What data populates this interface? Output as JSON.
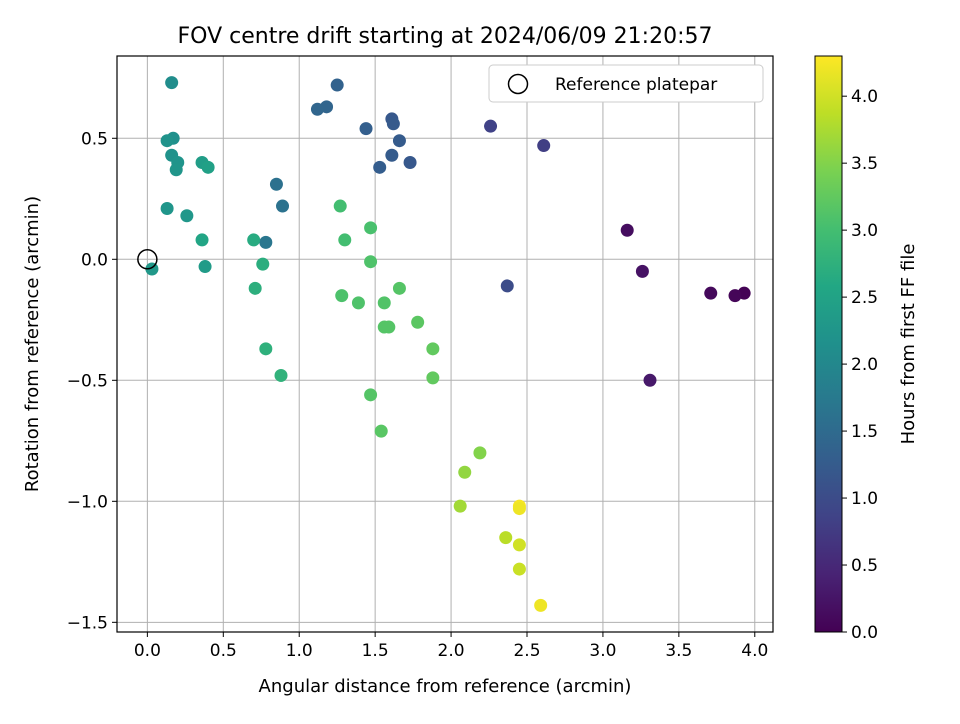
{
  "chart_data": {
    "type": "scatter",
    "title": "FOV centre drift starting at 2024/06/09 21:20:57",
    "xlabel": "Angular distance from reference (arcmin)",
    "ylabel": "Rotation from reference (arcmin)",
    "xlim": [
      -0.2,
      4.12
    ],
    "ylim": [
      -1.54,
      0.84
    ],
    "xticks": [
      0.0,
      0.5,
      1.0,
      1.5,
      2.0,
      2.5,
      3.0,
      3.5,
      4.0
    ],
    "xtick_labels": [
      "0.0",
      "0.5",
      "1.0",
      "1.5",
      "2.0",
      "2.5",
      "3.0",
      "3.5",
      "4.0"
    ],
    "yticks": [
      -1.5,
      -1.0,
      -0.5,
      0.0,
      0.5
    ],
    "ytick_labels": [
      "−1.5",
      "−1.0",
      "−0.5",
      "0.0",
      "0.5"
    ],
    "grid": true,
    "legend": {
      "position": "upper right",
      "entries": [
        "Reference platepar"
      ]
    },
    "reference_point": {
      "x": 0.0,
      "y": 0.0
    },
    "colorbar": {
      "label": "Hours from first FF file",
      "colormap": "viridis",
      "range": [
        0.0,
        4.3
      ],
      "ticks": [
        0.0,
        0.5,
        1.0,
        1.5,
        2.0,
        2.5,
        3.0,
        3.5,
        4.0
      ],
      "tick_labels": [
        "0.0",
        "0.5",
        "1.0",
        "1.5",
        "2.0",
        "2.5",
        "3.0",
        "3.5",
        "4.0"
      ]
    },
    "points": [
      {
        "x": 3.93,
        "y": -0.14,
        "h": 0.02
      },
      {
        "x": 3.87,
        "y": -0.15,
        "h": 0.06
      },
      {
        "x": 3.71,
        "y": -0.14,
        "h": 0.1
      },
      {
        "x": 3.16,
        "y": 0.12,
        "h": 0.15
      },
      {
        "x": 3.26,
        "y": -0.05,
        "h": 0.22
      },
      {
        "x": 3.31,
        "y": -0.5,
        "h": 0.3
      },
      {
        "x": 2.61,
        "y": 0.47,
        "h": 0.8
      },
      {
        "x": 2.26,
        "y": 0.55,
        "h": 0.85
      },
      {
        "x": 2.37,
        "y": -0.11,
        "h": 1.0
      },
      {
        "x": 1.73,
        "y": 0.4,
        "h": 1.2
      },
      {
        "x": 1.66,
        "y": 0.49,
        "h": 1.25
      },
      {
        "x": 1.61,
        "y": 0.58,
        "h": 1.2
      },
      {
        "x": 1.62,
        "y": 0.56,
        "h": 1.22
      },
      {
        "x": 1.61,
        "y": 0.43,
        "h": 1.25
      },
      {
        "x": 1.53,
        "y": 0.38,
        "h": 1.28
      },
      {
        "x": 1.44,
        "y": 0.54,
        "h": 1.3
      },
      {
        "x": 1.25,
        "y": 0.72,
        "h": 1.35
      },
      {
        "x": 1.18,
        "y": 0.63,
        "h": 1.4
      },
      {
        "x": 1.12,
        "y": 0.62,
        "h": 1.42
      },
      {
        "x": 0.85,
        "y": 0.31,
        "h": 1.6
      },
      {
        "x": 0.89,
        "y": 0.22,
        "h": 1.62
      },
      {
        "x": 0.78,
        "y": 0.07,
        "h": 1.68
      },
      {
        "x": 0.16,
        "y": 0.73,
        "h": 2.1
      },
      {
        "x": 0.17,
        "y": 0.5,
        "h": 2.15
      },
      {
        "x": 0.13,
        "y": 0.49,
        "h": 2.2
      },
      {
        "x": 0.16,
        "y": 0.43,
        "h": 2.18
      },
      {
        "x": 0.2,
        "y": 0.4,
        "h": 2.22
      },
      {
        "x": 0.19,
        "y": 0.37,
        "h": 2.25
      },
      {
        "x": 0.13,
        "y": 0.21,
        "h": 2.25
      },
      {
        "x": 0.26,
        "y": 0.18,
        "h": 2.28
      },
      {
        "x": 0.03,
        "y": -0.04,
        "h": 2.3
      },
      {
        "x": 0.38,
        "y": -0.03,
        "h": 2.35
      },
      {
        "x": 0.36,
        "y": 0.4,
        "h": 2.4
      },
      {
        "x": 0.4,
        "y": 0.38,
        "h": 2.45
      },
      {
        "x": 0.36,
        "y": 0.08,
        "h": 2.55
      },
      {
        "x": 0.7,
        "y": 0.08,
        "h": 2.65
      },
      {
        "x": 0.76,
        "y": -0.02,
        "h": 2.7
      },
      {
        "x": 0.71,
        "y": -0.12,
        "h": 2.72
      },
      {
        "x": 0.78,
        "y": -0.37,
        "h": 2.75
      },
      {
        "x": 0.88,
        "y": -0.48,
        "h": 2.78
      },
      {
        "x": 1.27,
        "y": 0.22,
        "h": 3.0
      },
      {
        "x": 1.3,
        "y": 0.08,
        "h": 3.0
      },
      {
        "x": 1.47,
        "y": 0.13,
        "h": 3.05
      },
      {
        "x": 1.47,
        "y": -0.01,
        "h": 3.1
      },
      {
        "x": 1.28,
        "y": -0.15,
        "h": 3.08
      },
      {
        "x": 1.39,
        "y": -0.18,
        "h": 3.1
      },
      {
        "x": 1.56,
        "y": -0.18,
        "h": 3.12
      },
      {
        "x": 1.66,
        "y": -0.12,
        "h": 3.15
      },
      {
        "x": 1.56,
        "y": -0.28,
        "h": 3.15
      },
      {
        "x": 1.59,
        "y": -0.28,
        "h": 3.15
      },
      {
        "x": 1.78,
        "y": -0.26,
        "h": 3.2
      },
      {
        "x": 1.88,
        "y": -0.37,
        "h": 3.25
      },
      {
        "x": 1.88,
        "y": -0.49,
        "h": 3.25
      },
      {
        "x": 1.47,
        "y": -0.56,
        "h": 3.15
      },
      {
        "x": 1.54,
        "y": -0.71,
        "h": 3.18
      },
      {
        "x": 2.19,
        "y": -0.8,
        "h": 3.5
      },
      {
        "x": 2.09,
        "y": -0.88,
        "h": 3.6
      },
      {
        "x": 2.06,
        "y": -1.02,
        "h": 3.7
      },
      {
        "x": 2.45,
        "y": -1.02,
        "h": 4.25
      },
      {
        "x": 2.45,
        "y": -1.03,
        "h": 4.2
      },
      {
        "x": 2.36,
        "y": -1.15,
        "h": 3.85
      },
      {
        "x": 2.45,
        "y": -1.18,
        "h": 4.0
      },
      {
        "x": 2.45,
        "y": -1.28,
        "h": 3.95
      },
      {
        "x": 2.59,
        "y": -1.43,
        "h": 4.2
      }
    ]
  }
}
